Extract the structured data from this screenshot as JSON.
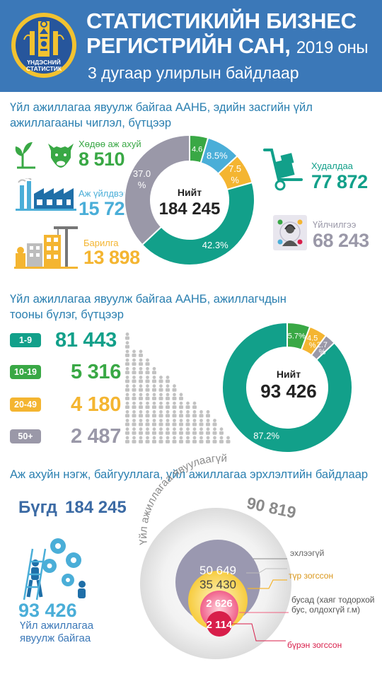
{
  "header": {
    "title_line1": "СТАТИСТИКИЙН БИЗНЕС",
    "title_line2": "РЕГИСТРИЙН САН,",
    "title_year": "2019 оны",
    "subtitle": "3 дугаар улирлын байдлаар",
    "logo_text_1": "ҮНДЭСНИЙ",
    "logo_text_2": "СТАТИСТИК"
  },
  "section1": {
    "title_line1": "Үйл ажиллагаа явуулж байгаа ААНБ, эдийн засгийн үйл",
    "title_line2": "ажиллагааны чиглэл, бүтцээр",
    "items": [
      {
        "label": "Хөдөө аж ахуй",
        "value": "8 510",
        "color": "#39a845"
      },
      {
        "label": "Аж үйлдвэр",
        "value": "15 722",
        "color": "#4aaed8"
      },
      {
        "label": "Барилга",
        "value": "13 898",
        "color": "#f4b531"
      },
      {
        "label": "Худалдаа",
        "value": "77 872",
        "color": "#12a08a"
      },
      {
        "label": "Үйлчилгээ",
        "value": "68 243",
        "color": "#9a98a8"
      }
    ],
    "total_label": "Нийт",
    "total_value": "184 245"
  },
  "section2": {
    "title_line1": "Үйл ажиллагаа явуулж байгаа ААНБ, ажиллагчдын",
    "title_line2": "тооны бүлэг, бүтцээр",
    "groups": [
      {
        "tag": "1-9",
        "value": "81 443",
        "color": "#12a08a"
      },
      {
        "tag": "10-19",
        "value": "5 316",
        "color": "#39a845"
      },
      {
        "tag": "20-49",
        "value": "4 180",
        "color": "#f4b531"
      },
      {
        "tag": "50+",
        "value": "2 487",
        "color": "#9a98a8"
      }
    ],
    "total_label": "Нийт",
    "total_value": "93 426"
  },
  "section3": {
    "title": "Аж ахуйн нэгж, байгууллага, үйл ажиллагаа эрхлэлтийн байдлаар",
    "total_label": "Бүгд",
    "total_value": "184 245",
    "active_value": "93 426",
    "active_label_line1": "Үйл ажиллагаа",
    "active_label_line2": "явуулж байгаа",
    "inactive_arc_label": "Үйл ажиллагаа явуулаагүй",
    "inactive_value": "90 819",
    "circles": [
      {
        "value": "50 649",
        "label": "эхлээгүй",
        "color": "#9a98b0"
      },
      {
        "value": "35 430",
        "label": "түр зогссон",
        "color": "#f4b531"
      },
      {
        "value": "2 626",
        "label_line1": "бусад (хаяг тодорхой",
        "label_line2": "бус, олдохгүй г.м)",
        "color": "#f06080"
      },
      {
        "value": "2 114",
        "label": "бүрэн зогссон",
        "color": "#d81e4a"
      }
    ]
  },
  "chart_data": [
    {
      "type": "pie",
      "subtitle": "Үйл ажиллагаа явуулж байгаа ААНБ, эдийн засгийн үйл ажиллагааны чиглэл, бүтцээр",
      "center_label": "Нийт",
      "center_value": "184 245",
      "slices": [
        {
          "name": "Хөдөө аж ахуй",
          "value": 4.6,
          "label": "4.6",
          "color": "#39a845"
        },
        {
          "name": "Аж үйлдвэр",
          "value": 8.5,
          "label": "8.5%",
          "color": "#4aaed8"
        },
        {
          "name": "Барилга",
          "value": 7.5,
          "label": "7.5 %",
          "color": "#f4b531"
        },
        {
          "name": "Худалдаа",
          "value": 42.3,
          "label": "42.3%",
          "color": "#12a08a"
        },
        {
          "name": "Үйлчилгээ",
          "value": 37.0,
          "label": "37.0 %",
          "color": "#9a98a8"
        }
      ]
    },
    {
      "type": "pie",
      "subtitle": "Үйл ажиллагаа явуулж байгаа ААНБ, ажиллагчдын тооны бүлэг, бүтцээр",
      "center_label": "Нийт",
      "center_value": "93 426",
      "slices": [
        {
          "name": "1-9",
          "value": 87.2,
          "label": "87.2%",
          "color": "#12a08a"
        },
        {
          "name": "10-19",
          "value": 5.7,
          "label": "5.7%",
          "color": "#39a845"
        },
        {
          "name": "20-49",
          "value": 4.5,
          "label": "4.5 %",
          "color": "#f4b531"
        },
        {
          "name": "50+",
          "value": 2.7,
          "label": "2.7 %",
          "color": "#9a98a8"
        }
      ]
    }
  ]
}
